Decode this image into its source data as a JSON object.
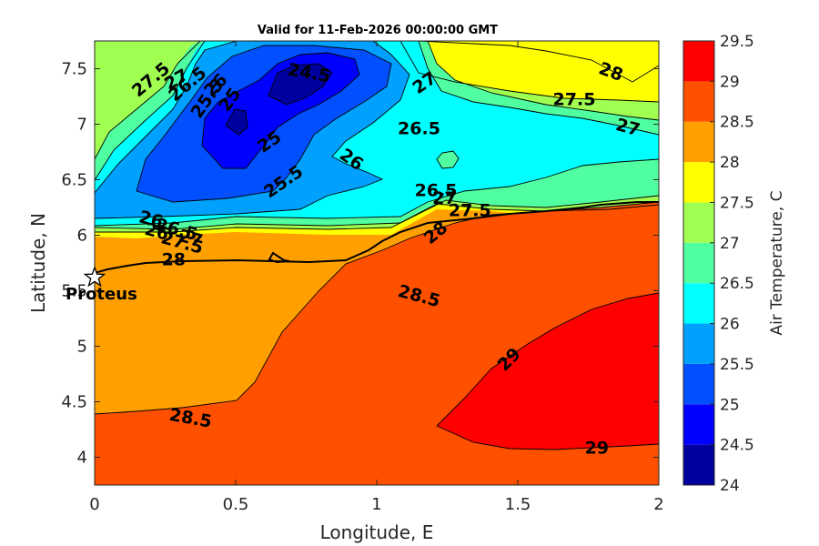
{
  "chart_data": {
    "type": "heatmap",
    "title": "Valid for 11-Feb-2026 00:00:00 GMT",
    "xlabel": "Longitude, E",
    "ylabel": "Latitude, N",
    "xlim": [
      0,
      2
    ],
    "ylim": [
      3.75,
      7.75
    ],
    "x_ticks": [
      "0",
      "0.5",
      "1",
      "1.5",
      "2"
    ],
    "y_ticks": [
      "4",
      "4.5",
      "5",
      "5.5",
      "6",
      "6.5",
      "7",
      "7.5"
    ],
    "colorbar": {
      "label": "Air Temperature, C",
      "levels": [
        24,
        24.5,
        25,
        25.5,
        26,
        26.5,
        27,
        27.5,
        28,
        28.5,
        29,
        29.5
      ],
      "tick_labels": [
        "24",
        "24.5",
        "25",
        "25.5",
        "26",
        "26.5",
        "27",
        "27.5",
        "28",
        "28.5",
        "29",
        "29.5"
      ],
      "colors": [
        "#00009f",
        "#0000ff",
        "#0050ff",
        "#00a0ff",
        "#00ffff",
        "#50ffa0",
        "#a0ff50",
        "#ffff00",
        "#ffa000",
        "#ff5000",
        "#ff0000",
        "#a00000"
      ]
    },
    "contour_labels": [
      {
        "text": "24.5",
        "x": 0.76,
        "y": 7.46,
        "rot": 10
      },
      {
        "text": "25",
        "x": 0.48,
        "y": 7.22,
        "rot": -55
      },
      {
        "text": "25",
        "x": 0.62,
        "y": 6.84,
        "rot": -35
      },
      {
        "text": "25.5",
        "x": 0.4,
        "y": 7.23,
        "rot": -55
      },
      {
        "text": "25.5",
        "x": 0.67,
        "y": 6.48,
        "rot": -35
      },
      {
        "text": "26",
        "x": 0.43,
        "y": 7.35,
        "rot": -45
      },
      {
        "text": "26",
        "x": 0.91,
        "y": 6.68,
        "rot": 35
      },
      {
        "text": "26",
        "x": 0.2,
        "y": 6.14,
        "rot": 15
      },
      {
        "text": "26",
        "x": 0.22,
        "y": 6.03,
        "rot": 15
      },
      {
        "text": "26.5",
        "x": 0.33,
        "y": 7.36,
        "rot": -40
      },
      {
        "text": "26.5",
        "x": 1.15,
        "y": 6.96,
        "rot": 0
      },
      {
        "text": "26.5",
        "x": 1.21,
        "y": 6.4,
        "rot": 0
      },
      {
        "text": "26.5",
        "x": 0.29,
        "y": 6.05,
        "rot": 15
      },
      {
        "text": "27",
        "x": 0.29,
        "y": 7.4,
        "rot": -30
      },
      {
        "text": "27",
        "x": 1.17,
        "y": 7.37,
        "rot": -35
      },
      {
        "text": "27",
        "x": 1.89,
        "y": 6.97,
        "rot": 15
      },
      {
        "text": "27",
        "x": 1.24,
        "y": 6.33,
        "rot": 0
      },
      {
        "text": "27",
        "x": 0.34,
        "y": 5.97,
        "rot": 15
      },
      {
        "text": "27.5",
        "x": 0.2,
        "y": 7.4,
        "rot": -40
      },
      {
        "text": "27.5",
        "x": 1.7,
        "y": 7.22,
        "rot": 0
      },
      {
        "text": "27.5",
        "x": 1.33,
        "y": 6.22,
        "rot": 0
      },
      {
        "text": "27.5",
        "x": 0.31,
        "y": 5.93,
        "rot": 15
      },
      {
        "text": "28",
        "x": 1.83,
        "y": 7.47,
        "rot": 20
      },
      {
        "text": "28",
        "x": 1.21,
        "y": 6.02,
        "rot": -40
      },
      {
        "text": "28",
        "x": 0.28,
        "y": 5.78,
        "rot": 0
      },
      {
        "text": "28.5",
        "x": 1.15,
        "y": 5.45,
        "rot": 15
      },
      {
        "text": "28.5",
        "x": 0.34,
        "y": 4.35,
        "rot": 10
      },
      {
        "text": "29",
        "x": 1.47,
        "y": 4.88,
        "rot": -45
      },
      {
        "text": "29",
        "x": 1.78,
        "y": 4.08,
        "rot": 0
      }
    ],
    "station": {
      "name": "Proteus",
      "x": 0.0,
      "y": 5.62
    }
  }
}
